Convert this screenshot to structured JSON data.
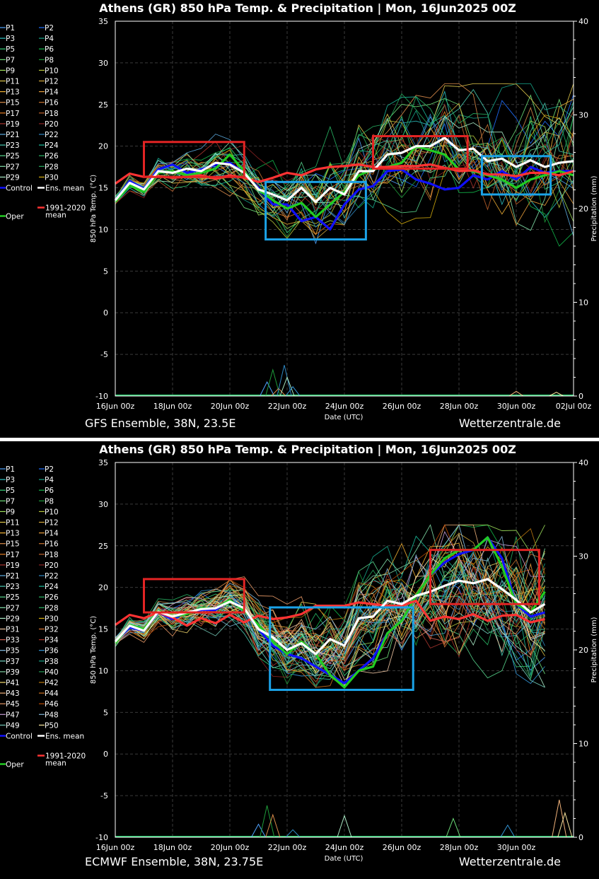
{
  "charts": [
    {
      "id": "gfs",
      "title": "Athens  (GR)  850 hPa Temp. & Precipitation | Mon, 16Jun2025 00Z",
      "footer_left": "GFS Ensemble, 38N, 23.5E",
      "footer_right": "Wetterzentrale.de",
      "ylabel": "850 hPa Temp. (°C)",
      "y2label": "Precipitation (mm)",
      "xlabel": "Date (UTC)",
      "xticks": [
        "16Jun 00z",
        "18Jun 00z",
        "20Jun 00z",
        "22Jun 00z",
        "24Jun 00z",
        "26Jun 00z",
        "28Jun 00z",
        "30Jun 00z",
        "02Jul 00z"
      ],
      "yticks": [
        "35",
        "30",
        "25",
        "20",
        "15",
        "10",
        "5",
        "0",
        "-5",
        "-10"
      ],
      "y2ticks": [
        "40",
        "30",
        "20",
        "10",
        "0"
      ],
      "legend_members": [
        "P1",
        "P2",
        "P3",
        "P4",
        "P5",
        "P6",
        "P7",
        "P8",
        "P9",
        "P10",
        "P11",
        "P12",
        "P13",
        "P14",
        "P15",
        "P16",
        "P17",
        "P18",
        "P19",
        "P20",
        "P21",
        "P22",
        "P23",
        "P24",
        "P25",
        "P26",
        "P27",
        "P28",
        "P29",
        "P30"
      ],
      "legend_control": "Control",
      "legend_mean": "Ens. mean",
      "legend_oper": "Oper",
      "legend_clim": "1991-2020",
      "legend_clim2": "mean"
    },
    {
      "id": "ecmwf",
      "title": "Athens  (GR)  850 hPa Temp. & Precipitation | Mon, 16Jun2025 00Z",
      "footer_left": "ECMWF Ensemble, 38N, 23.75E",
      "footer_right": "Wetterzentrale.de",
      "ylabel": "850 hPa Temp. (°C)",
      "y2label": "Precipitation (mm)",
      "xlabel": "Date (UTC)",
      "xticks": [
        "16Jun 00z",
        "18Jun 00z",
        "20Jun 00z",
        "22Jun 00z",
        "24Jun 00z",
        "26Jun 00z",
        "28Jun 00z",
        "30Jun 00z"
      ],
      "yticks": [
        "35",
        "30",
        "25",
        "20",
        "15",
        "10",
        "5",
        "0",
        "-5",
        "-10"
      ],
      "y2ticks": [
        "40",
        "30",
        "20",
        "10",
        "0"
      ],
      "legend_members": [
        "P1",
        "P2",
        "P3",
        "P4",
        "P5",
        "P6",
        "P7",
        "P8",
        "P9",
        "P10",
        "P11",
        "P12",
        "P13",
        "P14",
        "P15",
        "P16",
        "P17",
        "P18",
        "P19",
        "P20",
        "P21",
        "P22",
        "P23",
        "P24",
        "P25",
        "P26",
        "P27",
        "P28",
        "P29",
        "P30",
        "P31",
        "P32",
        "P33",
        "P34",
        "P35",
        "P36",
        "P37",
        "P38",
        "P39",
        "P40",
        "P41",
        "P42",
        "P43",
        "P44",
        "P45",
        "P46",
        "P47",
        "P48",
        "P49",
        "P50"
      ],
      "legend_control": "Control",
      "legend_mean": "Ens. mean",
      "legend_oper": "Oper",
      "legend_clim": "1991-2020",
      "legend_clim2": "mean"
    }
  ],
  "chart_data": [
    {
      "type": "line",
      "title": "Athens  (GR)  850 hPa Temp. & Precipitation | Mon, 16Jun2025 00Z",
      "xlabel": "Date (UTC)",
      "ylabel": "850 hPa Temp. (°C)",
      "y2label": "Precipitation (mm)",
      "ylim": [
        -10,
        35
      ],
      "y2lim": [
        0,
        40
      ],
      "x_days": [
        0,
        0.5,
        1,
        1.5,
        2,
        2.5,
        3,
        3.5,
        4,
        4.5,
        5,
        5.5,
        6,
        6.5,
        7,
        7.5,
        8,
        8.5,
        9,
        9.5,
        10,
        10.5,
        11,
        11.5,
        12,
        12.5,
        13,
        13.5,
        14,
        14.5,
        15,
        15.5,
        16
      ],
      "ensemble_mean": [
        13.5,
        15.6,
        14.8,
        17.0,
        16.8,
        17.3,
        17.0,
        18.0,
        17.8,
        16.8,
        14.8,
        14.2,
        13.5,
        15.0,
        13.3,
        15.0,
        14.2,
        17.0,
        17.0,
        19.0,
        19.2,
        20.0,
        20.0,
        21.0,
        19.5,
        19.7,
        18.2,
        18.5,
        17.5,
        18.3,
        17.5,
        18.0,
        18.2
      ],
      "control": [
        13.5,
        15.8,
        14.9,
        17.2,
        17.8,
        16.8,
        17.2,
        17.8,
        18.0,
        16.8,
        15.0,
        13.0,
        13.0,
        11.0,
        11.5,
        10.0,
        13.0,
        14.8,
        15.2,
        17.0,
        17.2,
        16.0,
        15.5,
        14.8,
        15.0,
        16.5,
        16.0,
        17.0,
        16.0,
        17.5,
        16.8,
        17.0,
        17.0
      ],
      "oper": [
        13.3,
        15.3,
        14.5,
        16.8,
        17.0,
        16.5,
        16.8,
        17.3,
        19.0,
        17.0,
        14.8,
        13.5,
        12.5,
        13.2,
        11.5,
        13.0,
        14.5,
        16.5,
        17.2,
        17.5,
        18.0,
        20.0,
        19.5,
        19.0,
        17.2,
        17.0,
        16.5,
        16.0,
        15.0,
        16.0,
        16.5,
        17.0,
        16.5
      ],
      "climatology_1991_2020_mean": [
        15.5,
        16.7,
        16.3,
        16.4,
        16.2,
        16.3,
        16.5,
        16.1,
        16.5,
        16.2,
        15.7,
        16.2,
        16.8,
        16.5,
        17.2,
        17.5,
        17.6,
        17.8,
        17.5,
        17.5,
        17.6,
        17.6,
        17.8,
        17.4,
        17.0,
        17.1,
        16.6,
        16.6,
        16.4,
        16.8,
        16.8,
        16.5,
        17.0
      ],
      "ensemble_temp_range": {
        "min": 8,
        "max": 27.5
      },
      "precip_max_mm": 3.3,
      "annotations": [
        {
          "color": "red",
          "days": [
            1.0,
            4.5
          ],
          "temp": [
            16.3,
            20.5
          ]
        },
        {
          "color": "blue",
          "days": [
            5.25,
            8.75
          ],
          "temp": [
            8.8,
            15.7
          ]
        },
        {
          "color": "red",
          "days": [
            9.0,
            12.3
          ],
          "temp": [
            17.3,
            21.2
          ]
        },
        {
          "color": "blue",
          "days": [
            12.8,
            15.2
          ],
          "temp": [
            14.2,
            18.8
          ]
        }
      ]
    },
    {
      "type": "line",
      "title": "Athens  (GR)  850 hPa Temp. & Precipitation | Mon, 16Jun2025 00Z",
      "xlabel": "Date (UTC)",
      "ylabel": "850 hPa Temp. (°C)",
      "y2label": "Precipitation (mm)",
      "ylim": [
        -10,
        35
      ],
      "y2lim": [
        0,
        40
      ],
      "x_days": [
        0,
        0.5,
        1,
        1.5,
        2,
        2.5,
        3,
        3.5,
        4,
        4.5,
        5,
        5.5,
        6,
        6.5,
        7,
        7.5,
        8,
        8.5,
        9,
        9.5,
        10,
        10.5,
        11,
        11.5,
        12,
        12.5,
        13,
        13.5,
        14,
        14.5,
        15
      ],
      "ensemble_mean": [
        13.5,
        15.4,
        14.8,
        17.1,
        16.5,
        17.0,
        17.4,
        17.5,
        18.3,
        17.5,
        15.0,
        14.0,
        12.5,
        13.3,
        12.0,
        13.8,
        13.0,
        16.3,
        16.5,
        18.4,
        18.0,
        19.0,
        19.5,
        20.2,
        20.8,
        20.5,
        21.0,
        19.8,
        18.5,
        17.0,
        18.0
      ],
      "control": [
        13.5,
        15.2,
        14.8,
        17.0,
        16.2,
        17.0,
        17.3,
        17.3,
        18.5,
        17.4,
        15.0,
        13.0,
        12.0,
        11.5,
        10.5,
        9.5,
        8.5,
        10.0,
        11.5,
        14.5,
        16.0,
        19.0,
        21.5,
        23.0,
        24.0,
        24.5,
        26.0,
        23.5,
        18.0,
        16.5,
        17.0
      ],
      "oper": [
        13.3,
        15.5,
        15.0,
        17.2,
        16.5,
        16.8,
        17.5,
        17.5,
        18.5,
        17.2,
        15.5,
        13.5,
        12.0,
        13.5,
        12.0,
        9.5,
        8.0,
        10.0,
        10.5,
        14.5,
        16.0,
        19.0,
        21.5,
        23.5,
        24.5,
        24.5,
        26.0,
        22.5,
        18.0,
        17.0,
        19.5
      ],
      "climatology_1991_2020_mean": [
        15.5,
        16.7,
        16.3,
        17.0,
        16.4,
        15.4,
        16.3,
        15.7,
        16.7,
        15.8,
        16.6,
        16.2,
        16.4,
        16.8,
        17.8,
        17.8,
        17.8,
        18.2,
        18.0,
        17.8,
        17.8,
        18.4,
        16.0,
        16.5,
        16.2,
        16.8,
        16.0,
        16.6,
        16.7,
        15.8,
        16.2
      ],
      "ensemble_temp_range": {
        "min": 8,
        "max": 27.5
      },
      "precip_max_mm": 4,
      "annotations": [
        {
          "color": "red",
          "days": [
            1.0,
            4.5
          ],
          "temp": [
            17.0,
            21.0
          ]
        },
        {
          "color": "blue",
          "days": [
            5.4,
            10.4
          ],
          "temp": [
            7.7,
            17.6
          ]
        },
        {
          "color": "red",
          "days": [
            11.0,
            14.8
          ],
          "temp": [
            18.0,
            24.5
          ]
        }
      ]
    }
  ]
}
